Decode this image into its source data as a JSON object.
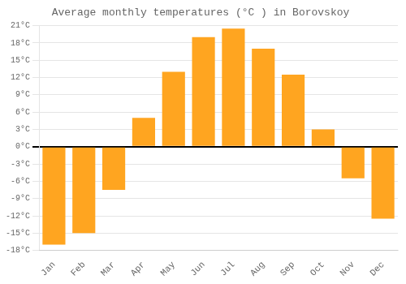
{
  "chart_data": {
    "type": "bar",
    "title": "Average monthly temperatures (°C ) in Borovskoy",
    "categories": [
      "Jan",
      "Feb",
      "Mar",
      "Apr",
      "May",
      "Jun",
      "Jul",
      "Aug",
      "Sep",
      "Oct",
      "Nov",
      "Dec"
    ],
    "values": [
      -17,
      -15,
      -7.5,
      5,
      13,
      19,
      20.5,
      17,
      12.5,
      3,
      -5.5,
      -12.5
    ],
    "color": "#FFA520",
    "ylim": [
      -18,
      21
    ],
    "yticks": [
      {
        "value": -18,
        "label": "-18°C"
      },
      {
        "value": -15,
        "label": "-15°C"
      },
      {
        "value": -12,
        "label": "-12°C"
      },
      {
        "value": -9,
        "label": "-9°C"
      },
      {
        "value": -6,
        "label": "-6°C"
      },
      {
        "value": -3,
        "label": "-3°C"
      },
      {
        "value": 0,
        "label": "0°C"
      },
      {
        "value": 3,
        "label": "3°C"
      },
      {
        "value": 6,
        "label": "6°C"
      },
      {
        "value": 9,
        "label": "9°C"
      },
      {
        "value": 12,
        "label": "12°C"
      },
      {
        "value": 15,
        "label": "15°C"
      },
      {
        "value": 18,
        "label": "18°C"
      },
      {
        "value": 21,
        "label": "21°C"
      }
    ],
    "grid": true
  }
}
